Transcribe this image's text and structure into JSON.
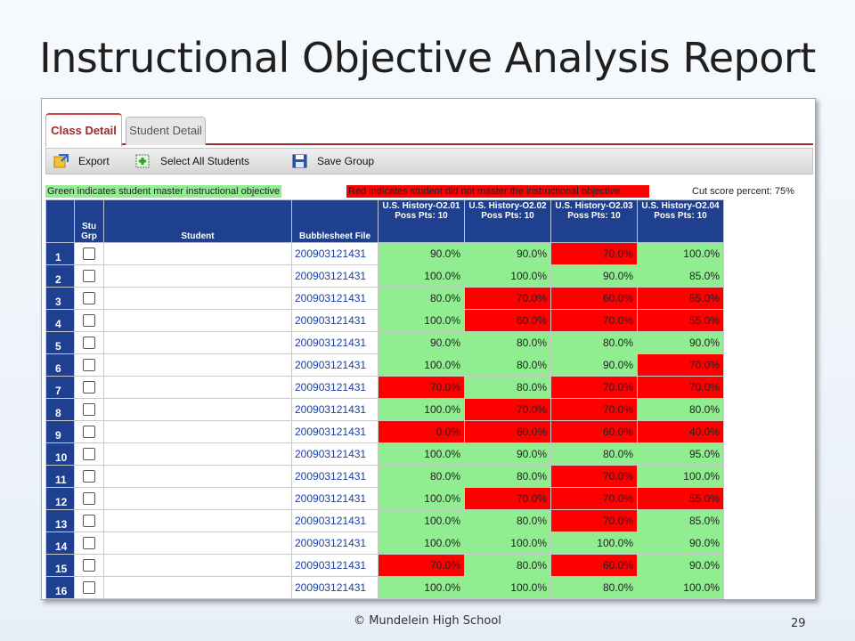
{
  "slide": {
    "title": "Instructional Objective Analysis Report",
    "footer": "© Mundelein High School",
    "page_number": "29"
  },
  "tabs": [
    {
      "label": "Class Detail",
      "active": true
    },
    {
      "label": "Student Detail",
      "active": false
    }
  ],
  "toolbar": {
    "export_label": "Export",
    "select_all_label": "Select All Students",
    "save_group_label": "Save Group"
  },
  "legend": {
    "green_text": "Green indicates student master instructional objective",
    "red_text": "Red indicates student did not master the instructional objective",
    "cut_score_text": "Cut score percent: 75%",
    "pass_color": "#90ee90",
    "fail_color": "#ff0000",
    "header_color": "#1f3f8f"
  },
  "table": {
    "headers": {
      "stu_grp_line1": "Stu",
      "stu_grp_line2": "Grp",
      "student": "Student",
      "file": "Bubblesheet File"
    },
    "objectives": [
      {
        "name": "U.S. History-O2.01",
        "points": "Poss Pts: 10"
      },
      {
        "name": "U.S. History-O2.02",
        "points": "Poss Pts: 10"
      },
      {
        "name": "U.S. History-O2.03",
        "points": "Poss Pts: 10"
      },
      {
        "name": "U.S. History-O2.04",
        "points": "Poss Pts: 10"
      }
    ],
    "rows": [
      {
        "n": "1",
        "file": "200903121431",
        "scores": [
          "90.0%",
          "90.0%",
          "70.0%",
          "100.0%"
        ],
        "mastery": [
          "pass",
          "pass",
          "fail",
          "pass"
        ]
      },
      {
        "n": "2",
        "file": "200903121431",
        "scores": [
          "100.0%",
          "100.0%",
          "90.0%",
          "85.0%"
        ],
        "mastery": [
          "pass",
          "pass",
          "pass",
          "pass"
        ]
      },
      {
        "n": "3",
        "file": "200903121431",
        "scores": [
          "80.0%",
          "70.0%",
          "60.0%",
          "55.0%"
        ],
        "mastery": [
          "pass",
          "fail",
          "fail",
          "fail"
        ]
      },
      {
        "n": "4",
        "file": "200903121431",
        "scores": [
          "100.0%",
          "60.0%",
          "70.0%",
          "55.0%"
        ],
        "mastery": [
          "pass",
          "fail",
          "fail",
          "fail"
        ]
      },
      {
        "n": "5",
        "file": "200903121431",
        "scores": [
          "90.0%",
          "80.0%",
          "80.0%",
          "90.0%"
        ],
        "mastery": [
          "pass",
          "pass",
          "pass",
          "pass"
        ]
      },
      {
        "n": "6",
        "file": "200903121431",
        "scores": [
          "100.0%",
          "80.0%",
          "90.0%",
          "70.0%"
        ],
        "mastery": [
          "pass",
          "pass",
          "pass",
          "fail"
        ]
      },
      {
        "n": "7",
        "file": "200903121431",
        "scores": [
          "70.0%",
          "80.0%",
          "70.0%",
          "70.0%"
        ],
        "mastery": [
          "fail",
          "pass",
          "fail",
          "fail"
        ]
      },
      {
        "n": "8",
        "file": "200903121431",
        "scores": [
          "100.0%",
          "70.0%",
          "70.0%",
          "80.0%"
        ],
        "mastery": [
          "pass",
          "fail",
          "fail",
          "pass"
        ]
      },
      {
        "n": "9",
        "file": "200903121431",
        "scores": [
          "0.0%",
          "60.0%",
          "60.0%",
          "40.0%"
        ],
        "mastery": [
          "fail",
          "fail",
          "fail",
          "fail"
        ]
      },
      {
        "n": "10",
        "file": "200903121431",
        "scores": [
          "100.0%",
          "90.0%",
          "80.0%",
          "95.0%"
        ],
        "mastery": [
          "pass",
          "pass",
          "pass",
          "pass"
        ]
      },
      {
        "n": "11",
        "file": "200903121431",
        "scores": [
          "80.0%",
          "80.0%",
          "70.0%",
          "100.0%"
        ],
        "mastery": [
          "pass",
          "pass",
          "fail",
          "pass"
        ]
      },
      {
        "n": "12",
        "file": "200903121431",
        "scores": [
          "100.0%",
          "70.0%",
          "70.0%",
          "55.0%"
        ],
        "mastery": [
          "pass",
          "fail",
          "fail",
          "fail"
        ]
      },
      {
        "n": "13",
        "file": "200903121431",
        "scores": [
          "100.0%",
          "80.0%",
          "70.0%",
          "85.0%"
        ],
        "mastery": [
          "pass",
          "pass",
          "fail",
          "pass"
        ]
      },
      {
        "n": "14",
        "file": "200903121431",
        "scores": [
          "100.0%",
          "100.0%",
          "100.0%",
          "90.0%"
        ],
        "mastery": [
          "pass",
          "pass",
          "pass",
          "pass"
        ]
      },
      {
        "n": "15",
        "file": "200903121431",
        "scores": [
          "70.0%",
          "80.0%",
          "60.0%",
          "90.0%"
        ],
        "mastery": [
          "fail",
          "pass",
          "fail",
          "pass"
        ]
      },
      {
        "n": "16",
        "file": "200903121431",
        "scores": [
          "100.0%",
          "100.0%",
          "80.0%",
          "100.0%"
        ],
        "mastery": [
          "pass",
          "pass",
          "pass",
          "pass"
        ]
      }
    ]
  }
}
